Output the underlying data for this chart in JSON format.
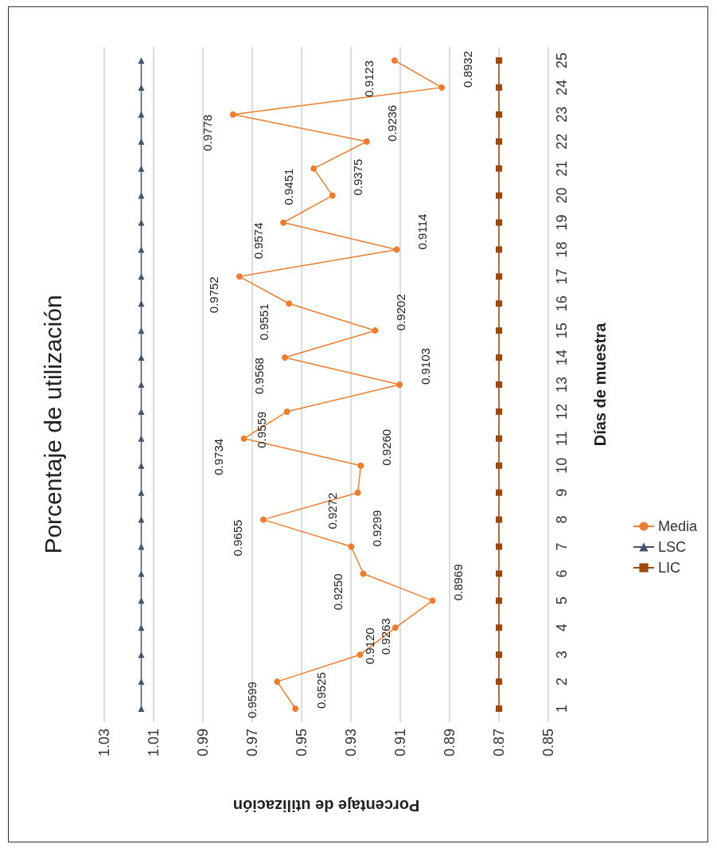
{
  "chart_data": {
    "type": "line",
    "orientation": "horizontal",
    "title": "Porcentaje de utilización",
    "xlabel": "Porcentaje de utilización",
    "ylabel": "Días de muestra",
    "categories": [
      "25",
      "24",
      "23",
      "22",
      "21",
      "20",
      "19",
      "18",
      "17",
      "16",
      "15",
      "14",
      "13",
      "12",
      "11",
      "10",
      "9",
      "8",
      "7",
      "6",
      "5",
      "4",
      "3",
      "2",
      "1"
    ],
    "series": [
      {
        "name": "Media",
        "color": "#ed7d31",
        "marker": "circle",
        "values": [
          0.9123,
          0.8932,
          0.9778,
          0.9236,
          0.9451,
          0.9375,
          0.9574,
          0.9114,
          0.9752,
          0.9551,
          0.9202,
          0.9568,
          0.9103,
          0.9559,
          0.9734,
          0.926,
          0.9272,
          0.9655,
          0.9299,
          0.925,
          0.8969,
          0.912,
          0.9263,
          0.9599,
          0.9525
        ],
        "value_labels": [
          "0.9123",
          "0.8932",
          "0.9778",
          "0.9236",
          "0.9451",
          "0.9375",
          "0.9574",
          "0.9114",
          "0.9752",
          "0.9551",
          "0.9202",
          "0.9568",
          "0.9103",
          "0.9559",
          "0.9734",
          "0.9260",
          "0.9272",
          "0.9655",
          "0.9299",
          "0.9250",
          "0.8969",
          "0.9120",
          "0.9263",
          "0.9599",
          "0.9525"
        ]
      },
      {
        "name": "LSC",
        "color": "#44546a",
        "marker": "triangle",
        "values": [
          1.015,
          1.015,
          1.015,
          1.015,
          1.015,
          1.015,
          1.015,
          1.015,
          1.015,
          1.015,
          1.015,
          1.015,
          1.015,
          1.015,
          1.015,
          1.015,
          1.015,
          1.015,
          1.015,
          1.015,
          1.015,
          1.015,
          1.015,
          1.015,
          1.015
        ]
      },
      {
        "name": "LIC",
        "color": "#9e480e",
        "marker": "square",
        "values": [
          0.87,
          0.87,
          0.87,
          0.87,
          0.87,
          0.87,
          0.87,
          0.87,
          0.87,
          0.87,
          0.87,
          0.87,
          0.87,
          0.87,
          0.87,
          0.87,
          0.87,
          0.87,
          0.87,
          0.87,
          0.87,
          0.87,
          0.87,
          0.87,
          0.87
        ]
      }
    ],
    "xlim": [
      1.03,
      0.85
    ],
    "xticks": [
      1.03,
      1.01,
      0.99,
      0.97,
      0.95,
      0.93,
      0.91,
      0.89,
      0.87,
      0.85
    ],
    "grid": "x",
    "legend": "right"
  }
}
